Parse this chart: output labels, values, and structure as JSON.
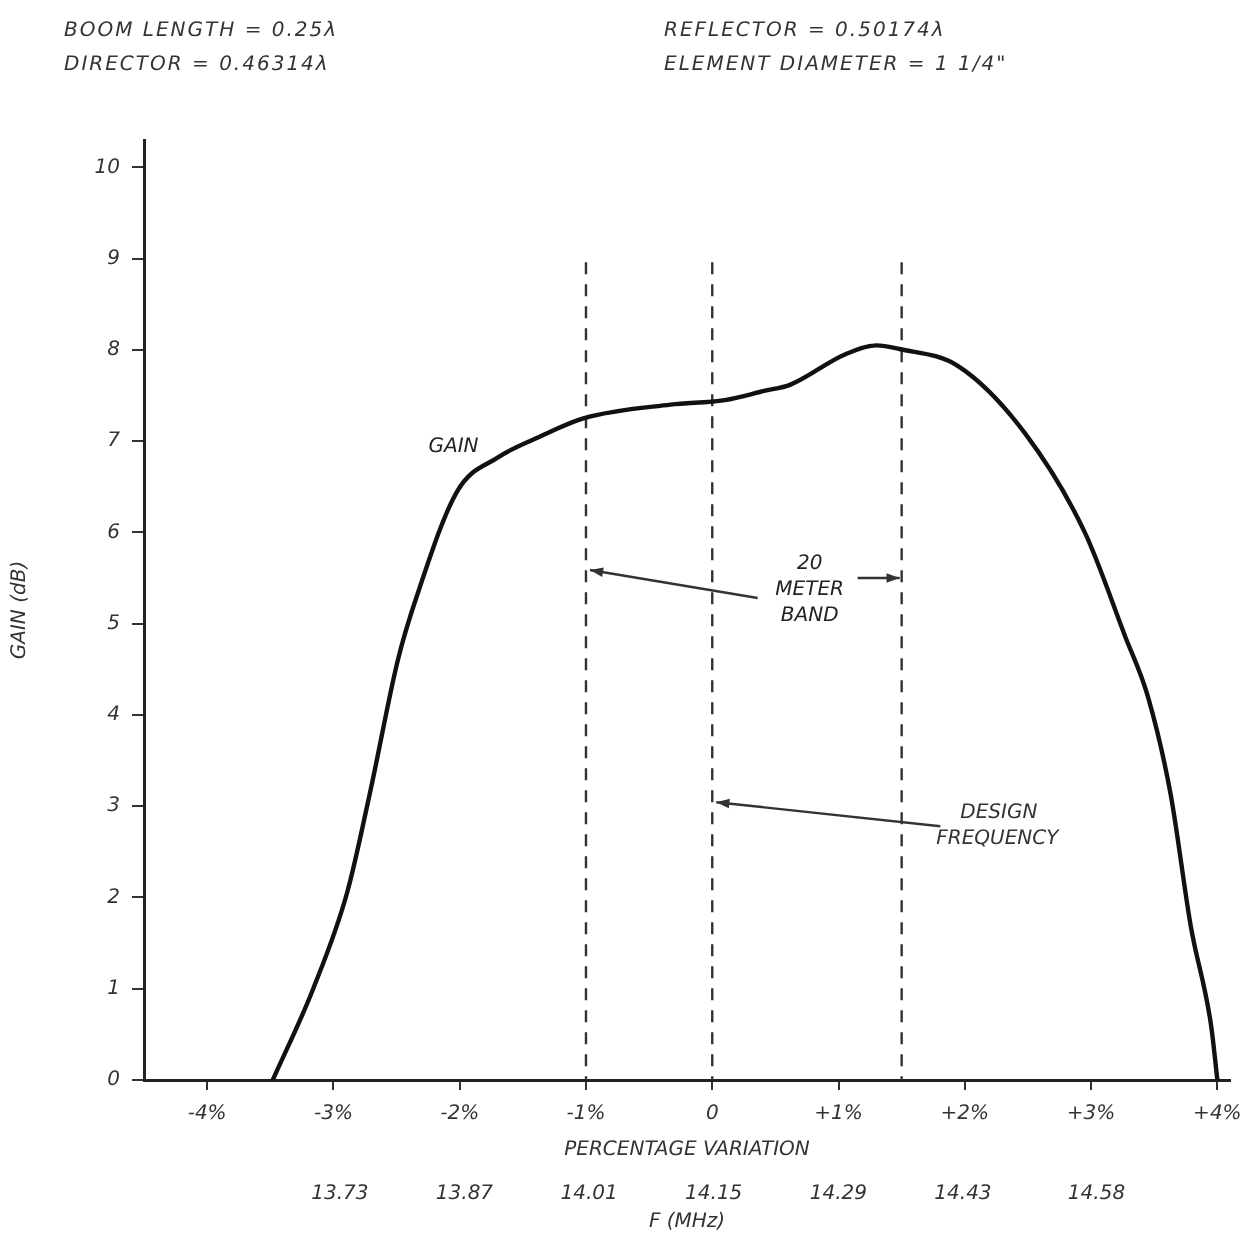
{
  "chart_data": {
    "type": "line",
    "annotations": [
      "BOOM LENGTH = 0.25λ",
      "REFLECTOR = 0.50174λ",
      "DIRECTOR = 0.46314λ",
      "ELEMENT DIAMETER = 1 1/4\"",
      "GAIN",
      {
        "text": "20 METER BAND",
        "x": 1.5,
        "y": 5.5
      }
    ],
    "xlabel": "PERCENTAGE VARIATION",
    "ylabel": "GAIN (dB)",
    "x2label": "F (MHz)",
    "series": [
      {
        "color": "#111111",
        "x": [
          -3.48,
          -3.16,
          -2.89,
          -2.71,
          -2.49,
          -2.34,
          -2.02,
          -1.7,
          -1.38,
          -1.02,
          -0.33,
          0.1,
          0.41,
          0.62,
          1.05,
          1.3,
          1.48,
          1.95,
          2.48,
          2.95,
          3.27,
          3.45,
          3.63,
          3.79,
          3.95,
          4.0
        ],
        "values": [
          0,
          1,
          2.06,
          3.15,
          4.6,
          5.3,
          6.45,
          6.82,
          7.04,
          7.25,
          7.4,
          7.45,
          7.55,
          7.62,
          7.95,
          8.05,
          8.01,
          7.82,
          7.08,
          6.0,
          4.86,
          4.2,
          3.13,
          1.68,
          0.6,
          0
        ]
      }
    ],
    "xlim": [
      -4.5,
      4.1
    ],
    "ylim": [
      0,
      10.3
    ],
    "xticks": [
      {
        "value": -4,
        "label": "-4%"
      },
      {
        "value": -3,
        "label": "-3%"
      },
      {
        "value": -2,
        "label": "-2%"
      },
      {
        "value": -1,
        "label": "-1%"
      },
      0,
      {
        "value": 1,
        "label": "+1%"
      },
      {
        "value": 2,
        "label": "+2%"
      },
      {
        "value": 3,
        "label": "+3%"
      },
      {
        "value": 4,
        "label": "+4%"
      }
    ],
    "yticks": [
      0,
      1,
      2,
      3,
      4,
      5,
      6,
      7,
      8,
      9,
      10
    ],
    "x2lim": [
      13.51,
      14.73
    ],
    "x2ticks": [
      13.73,
      13.87,
      14.01,
      14.15,
      14.29,
      14.43,
      14.58
    ],
    "ref_lines": [
      {
        "axis": "x",
        "value": -1,
        "line_style": "dashed"
      },
      {
        "axis": "x",
        "value": 0,
        "line_style": "dashed",
        "label": "DESIGN FREQUENCY"
      },
      {
        "axis": "x",
        "value": 1.5,
        "line_style": "dashed"
      }
    ],
    "marker": "none",
    "line_style": "solid"
  }
}
